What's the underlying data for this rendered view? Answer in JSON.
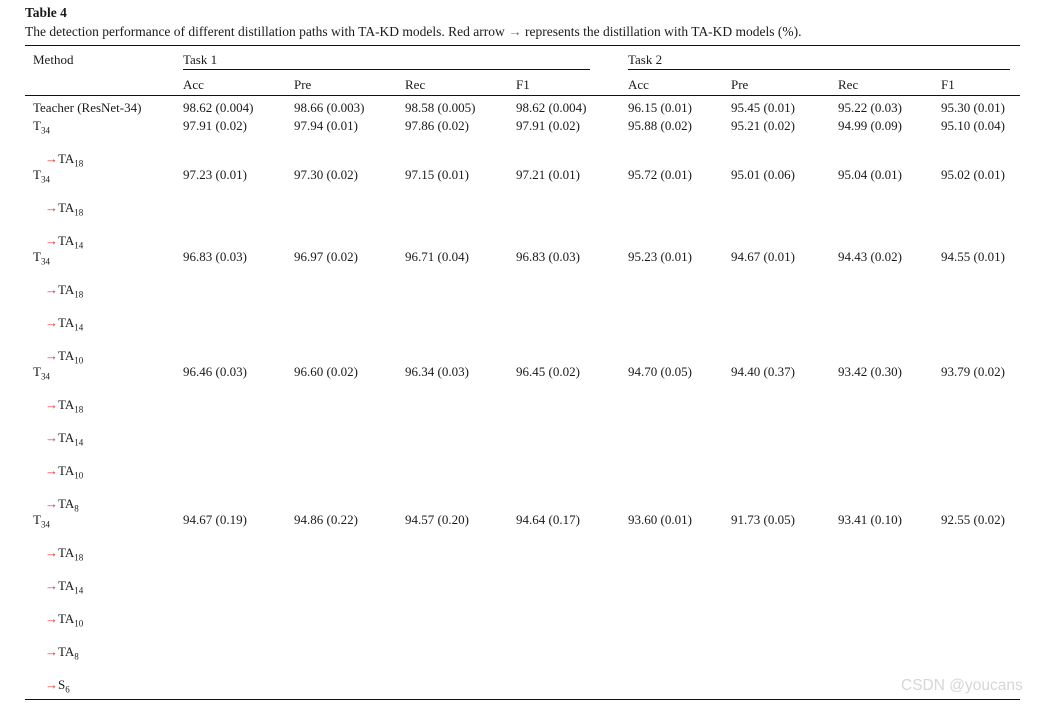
{
  "page": {
    "title": "Table 4",
    "caption_before": "The detection performance of different distillation paths with TA-KD models. Red arrow ",
    "caption_arrow": "→",
    "caption_after": " represents the distillation with TA-KD models (%).",
    "watermark": "CSDN @youcans"
  },
  "table": {
    "arrow_glyph": "→",
    "method_header": "Method",
    "groups": [
      {
        "label": "Task 1"
      },
      {
        "label": "Task 2"
      }
    ],
    "subheaders": [
      "Acc",
      "Pre",
      "Rec",
      "F1",
      "Acc",
      "Pre",
      "Rec",
      "F1"
    ],
    "rows": [
      {
        "method_lines": [
          {
            "base": "Teacher (ResNet-34)",
            "sub": "",
            "arrow": false
          }
        ],
        "values": [
          "98.62 (0.004)",
          "98.66 (0.003)",
          "98.58 (0.005)",
          "98.62 (0.004)",
          "96.15 (0.01)",
          "95.45 (0.01)",
          "95.22 (0.03)",
          "95.30 (0.01)"
        ]
      },
      {
        "method_lines": [
          {
            "base": "T",
            "sub": "34",
            "arrow": false
          },
          {
            "base": "TA",
            "sub": "18",
            "arrow": true
          }
        ],
        "values": [
          "97.91 (0.02)",
          "97.94 (0.01)",
          "97.86 (0.02)",
          "97.91 (0.02)",
          "95.88 (0.02)",
          "95.21 (0.02)",
          "94.99 (0.09)",
          "95.10 (0.04)"
        ]
      },
      {
        "method_lines": [
          {
            "base": "T",
            "sub": "34",
            "arrow": false
          },
          {
            "base": "TA",
            "sub": "18",
            "arrow": true
          },
          {
            "base": "TA",
            "sub": "14",
            "arrow": true
          }
        ],
        "values": [
          "97.23 (0.01)",
          "97.30 (0.02)",
          "97.15 (0.01)",
          "97.21 (0.01)",
          "95.72 (0.01)",
          "95.01 (0.06)",
          "95.04 (0.01)",
          "95.02 (0.01)"
        ]
      },
      {
        "method_lines": [
          {
            "base": "T",
            "sub": "34",
            "arrow": false
          },
          {
            "base": "TA",
            "sub": "18",
            "arrow": true
          },
          {
            "base": "TA",
            "sub": "14",
            "arrow": true
          },
          {
            "base": "TA",
            "sub": "10",
            "arrow": true
          }
        ],
        "values": [
          "96.83 (0.03)",
          "96.97 (0.02)",
          "96.71 (0.04)",
          "96.83 (0.03)",
          "95.23 (0.01)",
          "94.67 (0.01)",
          "94.43 (0.02)",
          "94.55 (0.01)"
        ]
      },
      {
        "method_lines": [
          {
            "base": "T",
            "sub": "34",
            "arrow": false
          },
          {
            "base": "TA",
            "sub": "18",
            "arrow": true
          },
          {
            "base": "TA",
            "sub": "14",
            "arrow": true
          },
          {
            "base": "TA",
            "sub": "10",
            "arrow": true
          },
          {
            "base": "TA",
            "sub": "8",
            "arrow": true
          }
        ],
        "values": [
          "96.46 (0.03)",
          "96.60 (0.02)",
          "96.34 (0.03)",
          "96.45 (0.02)",
          "94.70 (0.05)",
          "94.40 (0.37)",
          "93.42 (0.30)",
          "93.79 (0.02)"
        ]
      },
      {
        "method_lines": [
          {
            "base": "T",
            "sub": "34",
            "arrow": false
          },
          {
            "base": "TA",
            "sub": "18",
            "arrow": true
          },
          {
            "base": "TA",
            "sub": "14",
            "arrow": true
          },
          {
            "base": "TA",
            "sub": "10",
            "arrow": true
          },
          {
            "base": "TA",
            "sub": "8",
            "arrow": true
          },
          {
            "base": "S",
            "sub": "6",
            "arrow": true
          }
        ],
        "values": [
          "94.67 (0.19)",
          "94.86 (0.22)",
          "94.57 (0.20)",
          "94.64 (0.17)",
          "93.60 (0.01)",
          "91.73 (0.05)",
          "93.41 (0.10)",
          "92.55 (0.02)"
        ]
      }
    ],
    "colors": {
      "arrow_red": "#e0392e",
      "text": "#1a1a1a",
      "watermark": "#d5d6d9"
    }
  }
}
